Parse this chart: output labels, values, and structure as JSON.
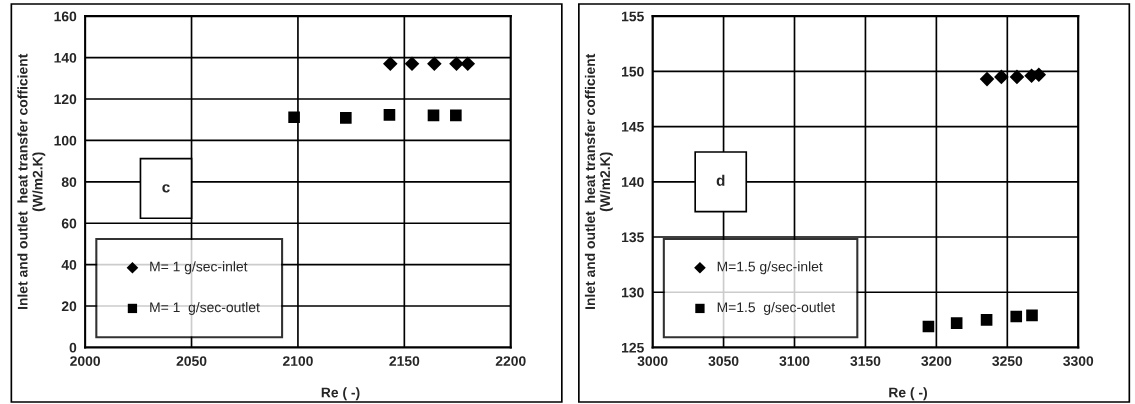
{
  "chart_data": [
    {
      "type": "scatter",
      "xlabel": "Re ( -)",
      "ylabel": "Inlet and outlet  heat transfer cofficient\n(W/m2.K)",
      "xlim": [
        2000,
        2200
      ],
      "xticks": [
        2000,
        2050,
        2100,
        2150,
        2200
      ],
      "ylim": [
        0,
        160
      ],
      "yticks": [
        0,
        20,
        40,
        60,
        80,
        100,
        120,
        140,
        160
      ],
      "grid": true,
      "legend": "bottom left",
      "annotations": [
        "c"
      ],
      "series": [
        {
          "name": "M= 1 g/sec-inlet",
          "color": "#000000",
          "marker": "diamond",
          "x": [
            2143.4,
            2153.6,
            2164.1,
            2174.5,
            2179.8
          ],
          "values": [
            137,
            137,
            137,
            137,
            137
          ]
        },
        {
          "name": "M= 1  g/sec-outlet",
          "color": "#000000",
          "marker": "square",
          "x": [
            2098.2,
            2122.5,
            2143,
            2163.7,
            2174.2
          ],
          "values": [
            111.2,
            110.9,
            112.3,
            112.1,
            112.1
          ]
        }
      ]
    },
    {
      "type": "scatter",
      "xlabel": "Re ( -)",
      "ylabel": "Inlet and outlet  heat transfer cofficient\n(W/m2.K)",
      "xlim": [
        3000,
        3300
      ],
      "xticks": [
        3000,
        3050,
        3100,
        3150,
        3200,
        3250,
        3300
      ],
      "ylim": [
        125,
        155
      ],
      "yticks": [
        125,
        130,
        135,
        140,
        145,
        150,
        155
      ],
      "grid": true,
      "legend": "bottom left",
      "annotations": [
        "d"
      ],
      "series": [
        {
          "name": "M=1.5 g/sec-inlet",
          "color": "#000000",
          "marker": "diamond",
          "x": [
            3235.7,
            3245.8,
            3256.8,
            3267.1,
            3272.2
          ],
          "values": [
            149.3,
            149.5,
            149.5,
            149.6,
            149.7
          ]
        },
        {
          "name": "M=1.5  g/sec-outlet",
          "color": "#000000",
          "marker": "square",
          "x": [
            3194.4,
            3214.3,
            3235.4,
            3256.3,
            3267.4
          ],
          "values": [
            126.9,
            127.2,
            127.5,
            127.8,
            127.9
          ]
        }
      ]
    }
  ]
}
